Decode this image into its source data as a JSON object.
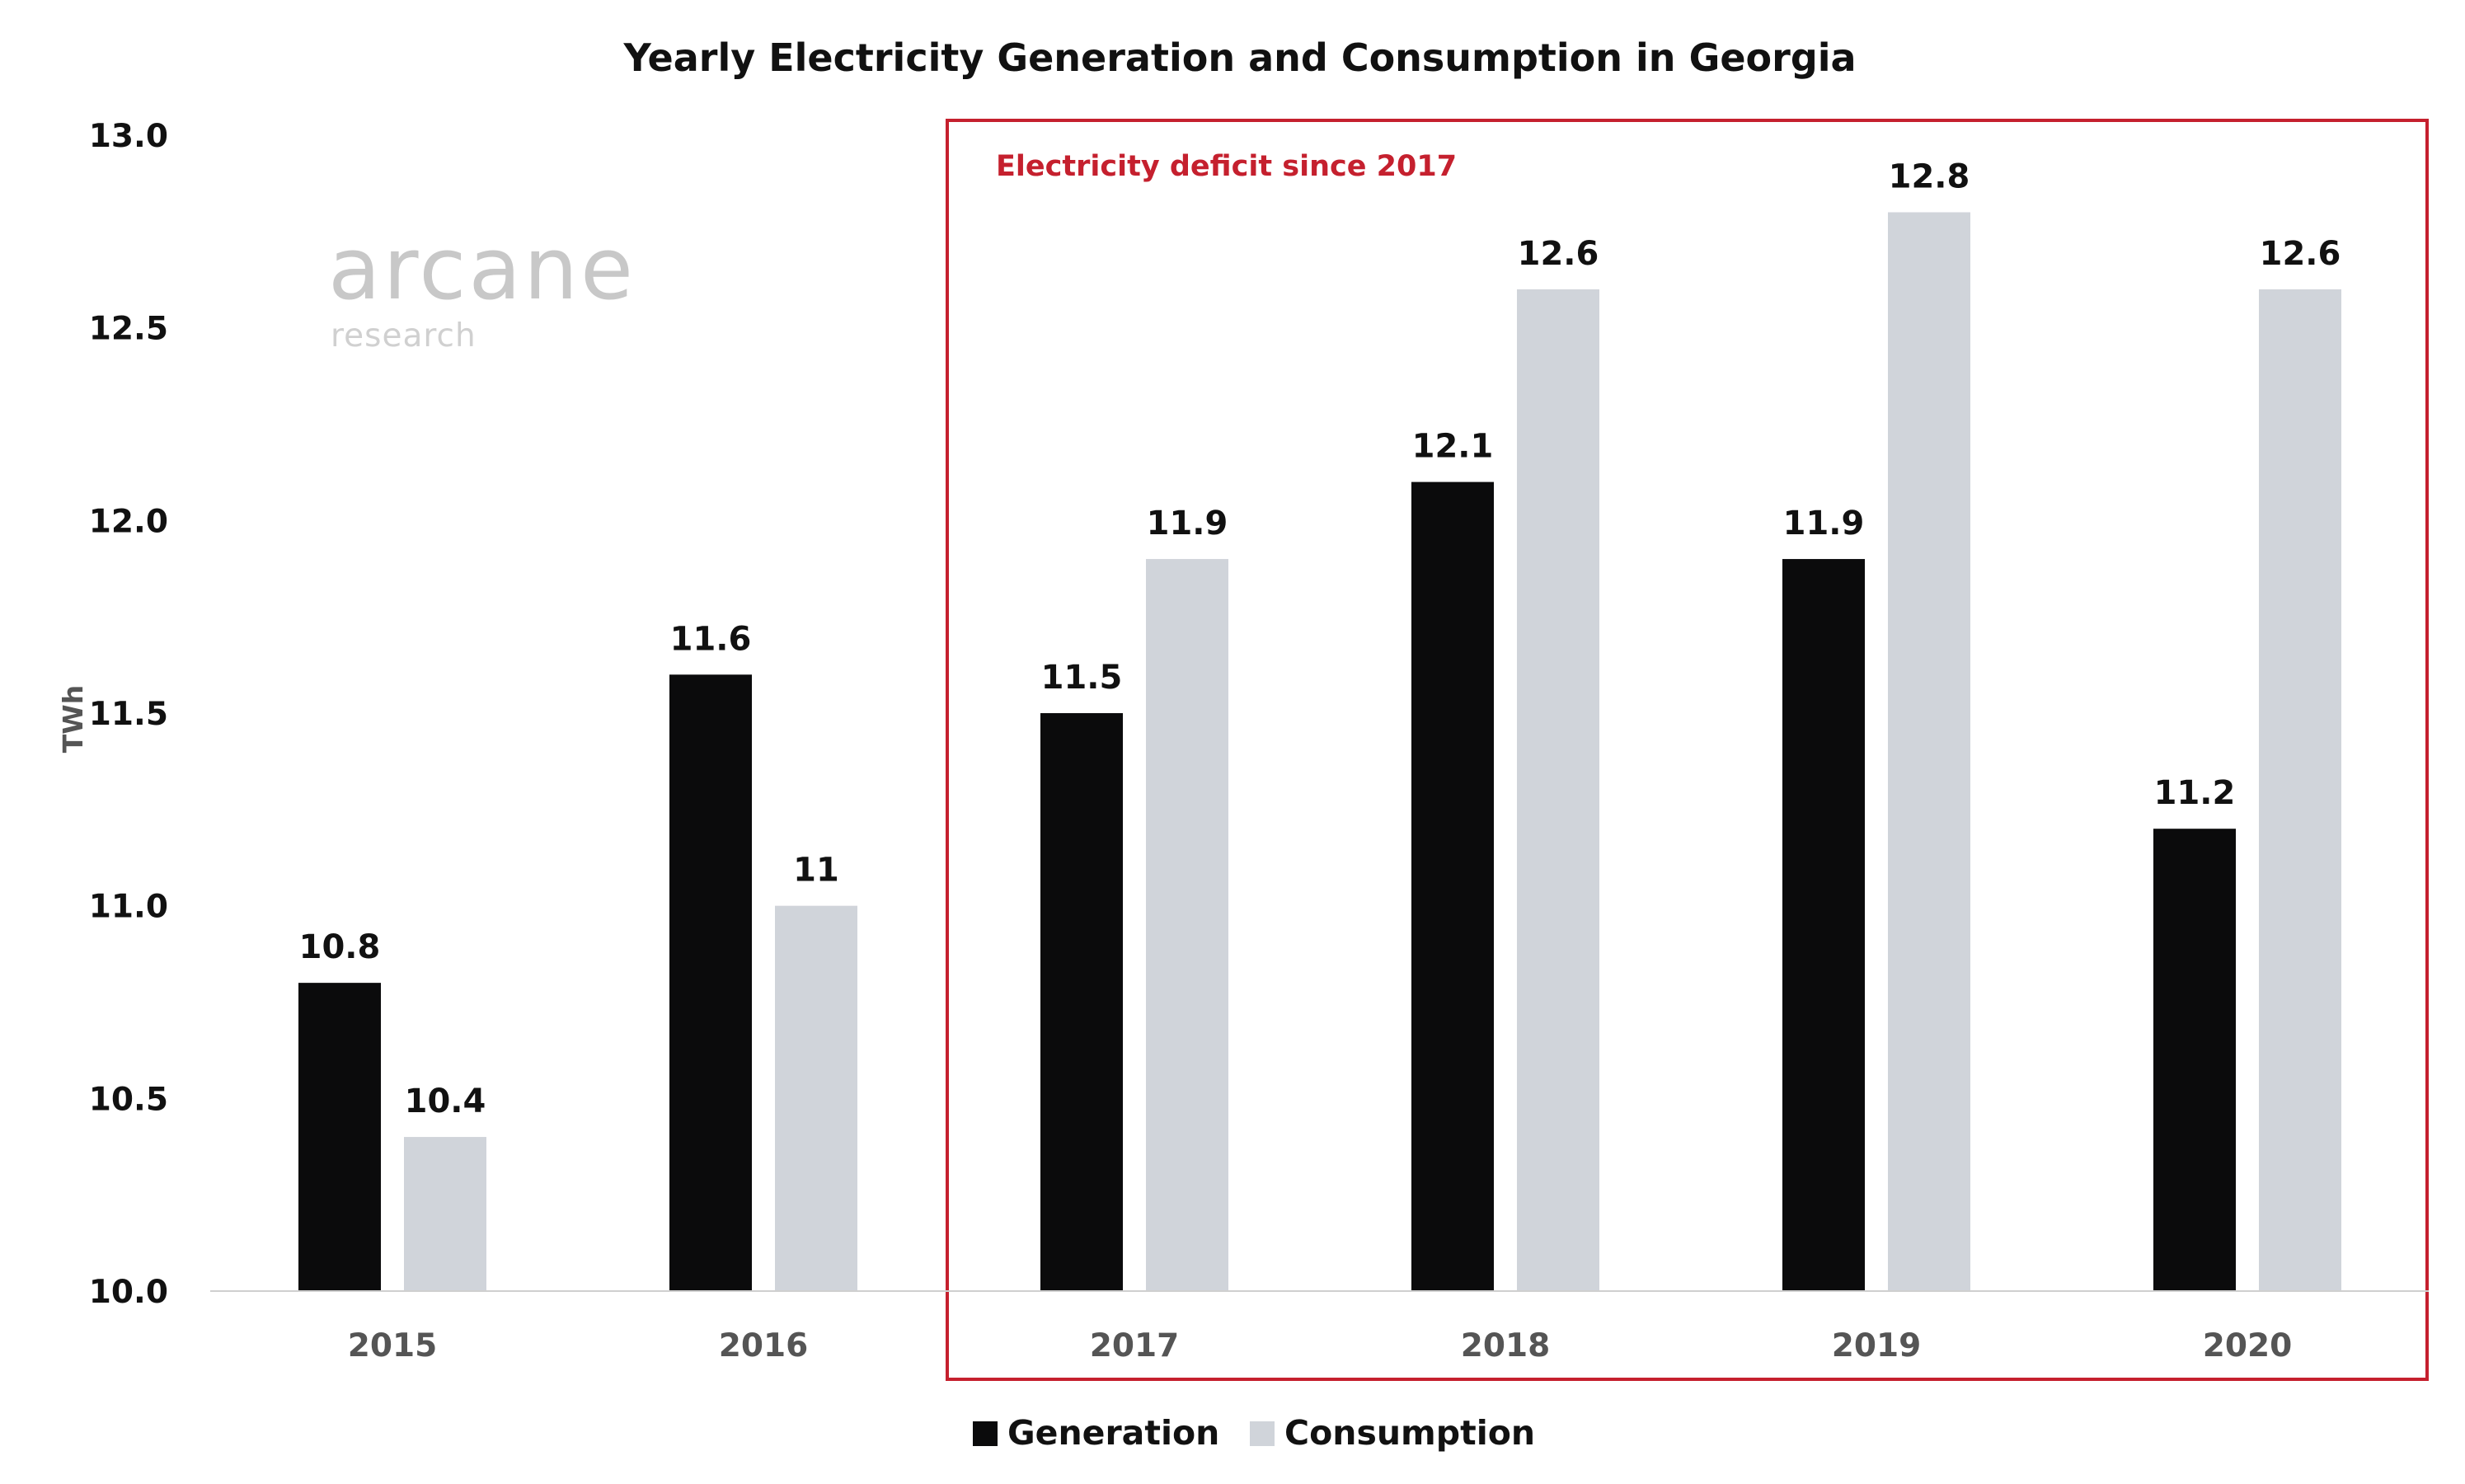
{
  "chart_data": {
    "type": "bar",
    "title": "Yearly Electricity Generation and Consumption in Georgia",
    "ylabel": "TWh",
    "xlabel": "",
    "ylim": [
      10.0,
      13.0
    ],
    "yticks": [
      "10.0",
      "10.5",
      "11.0",
      "11.5",
      "12.0",
      "12.5",
      "13.0"
    ],
    "categories": [
      "2015",
      "2016",
      "2017",
      "2018",
      "2019",
      "2020"
    ],
    "series": [
      {
        "name": "Generation",
        "color": "#0b0b0c",
        "values": [
          10.8,
          11.6,
          11.5,
          12.1,
          11.9,
          11.2
        ],
        "labels": [
          "10.8",
          "11.6",
          "11.5",
          "12.1",
          "11.9",
          "11.2"
        ]
      },
      {
        "name": "Consumption",
        "color": "#d0d4da",
        "values": [
          10.4,
          11.0,
          11.9,
          12.6,
          12.8,
          12.6
        ],
        "labels": [
          "10.4",
          "11",
          "11.9",
          "12.6",
          "12.8",
          "12.6"
        ]
      }
    ],
    "grid": false,
    "legend": "bottom-center",
    "annotation": {
      "text": "Electricity deficit since 2017",
      "color": "#c5202e",
      "from_category": "2017",
      "to_category": "2020"
    }
  },
  "watermark": {
    "logo": "arcane",
    "sub": "research"
  }
}
